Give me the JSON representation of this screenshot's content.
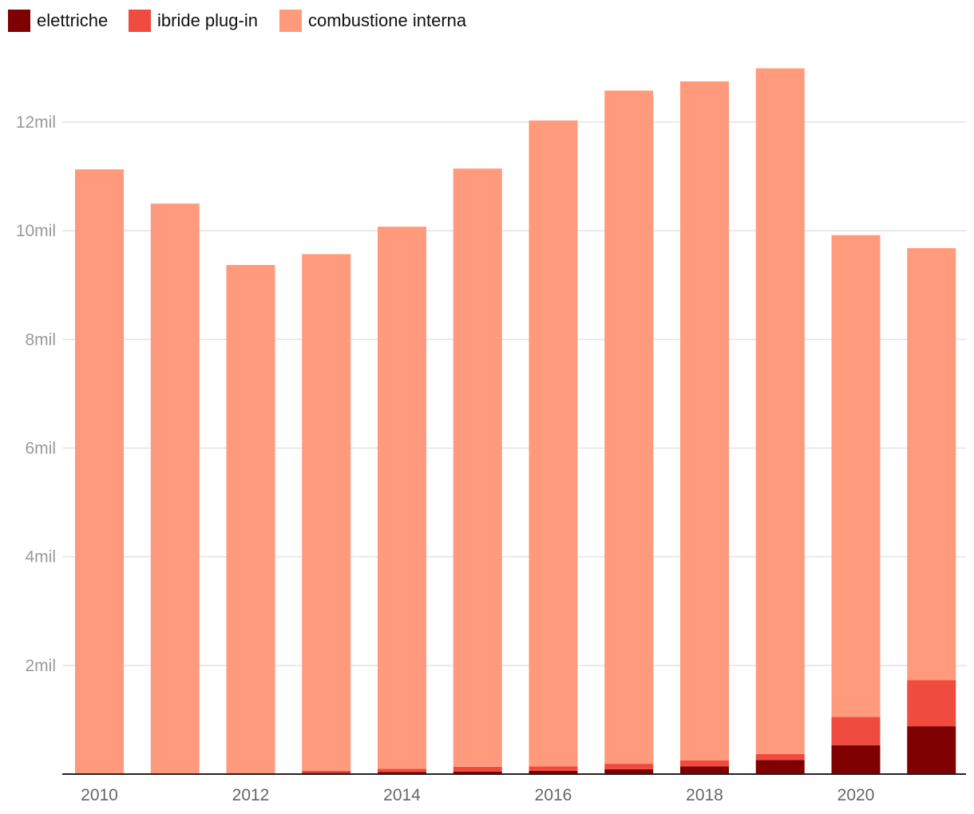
{
  "chart_data": {
    "type": "bar",
    "stacked": true,
    "title": "",
    "xlabel": "",
    "ylabel": "",
    "ylim": [
      0,
      13000000
    ],
    "legend_position": "top-left",
    "grid": true,
    "categories": [
      "2010",
      "2011",
      "2012",
      "2013",
      "2014",
      "2015",
      "2016",
      "2017",
      "2018",
      "2019",
      "2020",
      "2021"
    ],
    "x_tick_labels": [
      "2010",
      "2012",
      "2014",
      "2016",
      "2018",
      "2020"
    ],
    "y_ticks": [
      {
        "value": 2000000,
        "label": "2mil"
      },
      {
        "value": 4000000,
        "label": "4mil"
      },
      {
        "value": 6000000,
        "label": "6mil"
      },
      {
        "value": 8000000,
        "label": "8mil"
      },
      {
        "value": 10000000,
        "label": "10mil"
      },
      {
        "value": 12000000,
        "label": "12mil"
      }
    ],
    "series": [
      {
        "name": "elettriche",
        "color": "#7f0000",
        "values": [
          0,
          5000,
          10000,
          25000,
          40000,
          45000,
          60000,
          90000,
          140000,
          260000,
          530000,
          880000
        ]
      },
      {
        "name": "ibride plug-in",
        "color": "#ef4b3f",
        "values": [
          0,
          5000,
          10000,
          35000,
          55000,
          90000,
          80000,
          100000,
          110000,
          110000,
          520000,
          850000
        ]
      },
      {
        "name": "combustione interna",
        "color": "#ff9a7d",
        "values": [
          11130000,
          10490000,
          9350000,
          9510000,
          9980000,
          11010000,
          11890000,
          12390000,
          12500000,
          12620000,
          8870000,
          7950000
        ]
      }
    ]
  }
}
